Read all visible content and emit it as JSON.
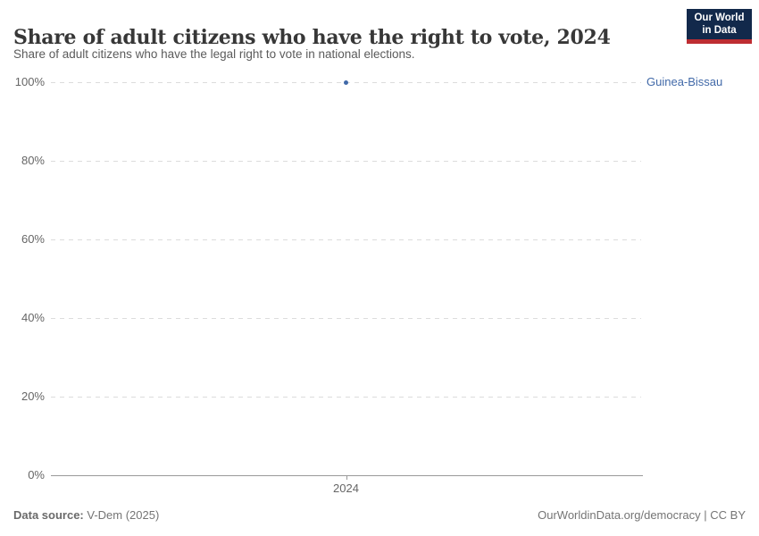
{
  "header": {
    "title": "Share of adult citizens who have the right to vote, 2024",
    "subtitle": "Share of adult citizens who have the legal right to vote in national elections.",
    "logo": {
      "line1": "Our World",
      "line2": "in Data",
      "bg_color": "#12294B",
      "bar_color": "#BE2D32"
    }
  },
  "chart_data": {
    "type": "scatter",
    "title": "Share of adult citizens who have the right to vote, 2024",
    "subtitle": "Share of adult citizens who have the legal right to vote in national elections.",
    "series": [
      {
        "name": "Guinea-Bissau",
        "x": [
          2024
        ],
        "values": [
          100
        ],
        "color": "#4169A8"
      }
    ],
    "x_ticks": [
      2024
    ],
    "y_ticks": [
      0,
      20,
      40,
      60,
      80,
      100
    ],
    "y_tick_suffix": "%",
    "ylim": [
      0,
      100
    ],
    "grid": "horizontal dashed",
    "legend_position": "entity label right of plot",
    "annotations": [
      "Guinea-Bissau"
    ]
  },
  "footer": {
    "source_label": "Data source:",
    "source_value": " V-Dem (2025)",
    "right_text": "OurWorldinData.org/democracy | CC BY"
  }
}
